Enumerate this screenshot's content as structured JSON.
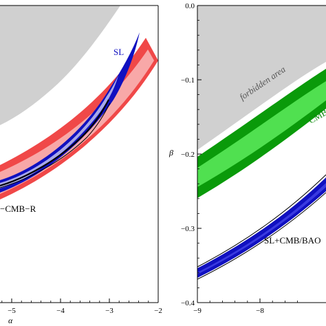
{
  "chart_data": [
    {
      "type": "area",
      "panel": "left",
      "xlabel": "α",
      "ylabel": "",
      "xlim": [
        -5.4,
        -2.0
      ],
      "x_ticks": [
        -5,
        -4,
        -3,
        -2
      ],
      "x_tick_labels": [
        "−5",
        "−4",
        "−3",
        "−2"
      ],
      "annotations": [
        {
          "text": "SL",
          "x": -2.85,
          "color": "#1010c0"
        },
        {
          "text": "−CMB−R",
          "x": -5.15,
          "color": "#000000"
        }
      ],
      "regions": [
        {
          "name": "forbidden",
          "color": "#d0d0d0"
        },
        {
          "name": "CMB-R",
          "color": "#f04040",
          "inner_color": "#f8a8a8"
        },
        {
          "name": "SL",
          "color": "#1010c0",
          "inner_color": "#a0a0e8"
        },
        {
          "name": "combined",
          "color": "#000000"
        }
      ]
    },
    {
      "type": "area",
      "panel": "right",
      "xlabel": "",
      "ylabel": "β",
      "xlim": [
        -9,
        -7.35
      ],
      "ylim": [
        -0.4,
        0.0
      ],
      "x_ticks": [
        -9,
        -8
      ],
      "x_tick_labels": [
        "−9",
        "−8"
      ],
      "y_ticks": [
        0.0,
        -0.1,
        -0.2,
        -0.3,
        -0.4
      ],
      "y_tick_labels": [
        "0.0",
        "−0.1",
        "−0.2",
        "−0.3",
        "−0.4"
      ],
      "annotations": [
        {
          "text": "forbidden area",
          "x": -8.7,
          "y": -0.06,
          "color": "#555555"
        },
        {
          "text": "CMB",
          "x": -7.45,
          "y": -0.15,
          "color": "#0a8a0a"
        },
        {
          "text": "SL+CMB/BAO",
          "x": -8.05,
          "y": -0.315,
          "color": "#000000"
        }
      ],
      "regions": [
        {
          "name": "forbidden",
          "color": "#d0d0d0"
        },
        {
          "name": "CMB",
          "color": "#0a9a0a",
          "inner_color": "#4ee04e"
        },
        {
          "name": "SL+CMB/BAO",
          "color": "#1010c0",
          "inner_color": "#3030d8"
        }
      ]
    }
  ]
}
